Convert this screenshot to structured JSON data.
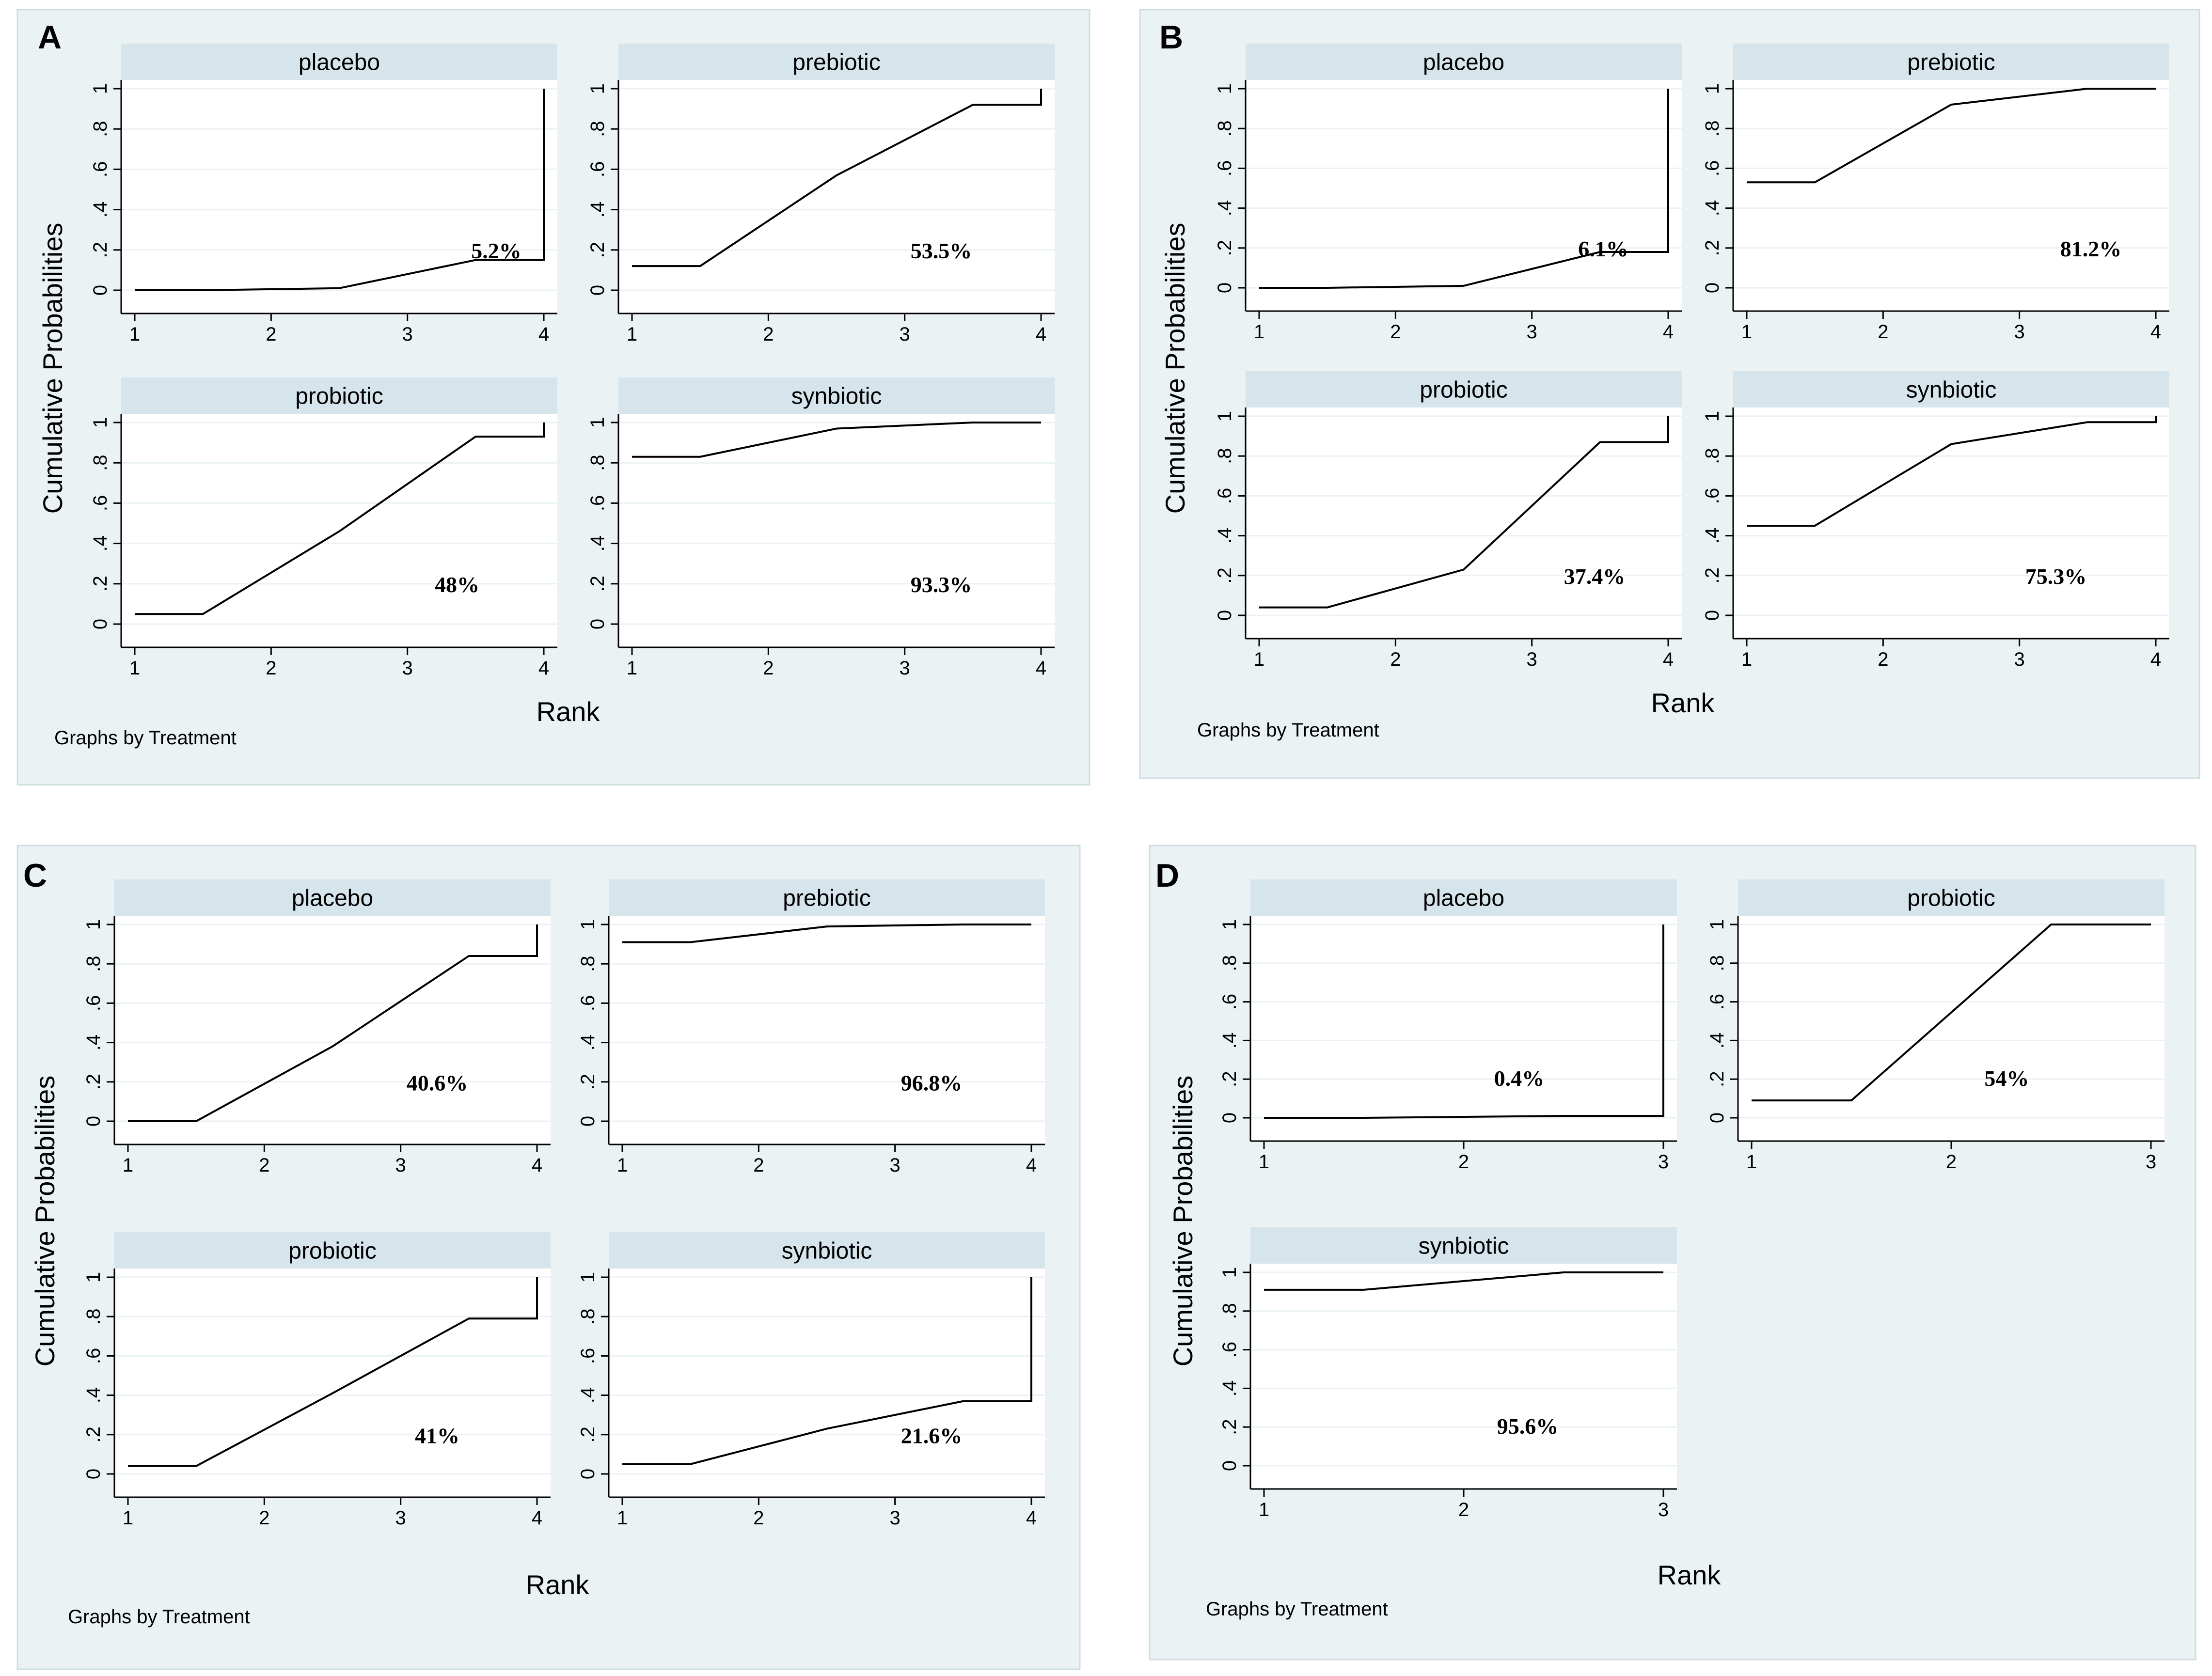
{
  "figure_type": "SUCRA cumulative ranking plots",
  "chart_data": [
    {
      "panel": "A",
      "type": "line",
      "xlabel": "Rank",
      "ylabel": "Cumulative Probabilities",
      "note": "Graphs by Treatment",
      "xlim": [
        1,
        4
      ],
      "ylim": [
        0,
        1
      ],
      "yticks": [
        "0",
        ".2",
        ".4",
        ".6",
        ".8",
        "1"
      ],
      "xticks": [
        "1",
        "2",
        "3",
        "4"
      ],
      "facets": [
        {
          "name": "placebo",
          "sucra": "5.2%",
          "x": [
            1,
            1.5,
            2.5,
            3.5,
            4,
            4
          ],
          "y": [
            0,
            0,
            0.01,
            0.15,
            0.15,
            1.0
          ]
        },
        {
          "name": "prebiotic",
          "sucra": "53.5%",
          "x": [
            1,
            1.5,
            2.5,
            3.5,
            4,
            4
          ],
          "y": [
            0.12,
            0.12,
            0.57,
            0.92,
            0.92,
            1.0
          ]
        },
        {
          "name": "probiotic",
          "sucra": "48%",
          "x": [
            1,
            1.5,
            2.5,
            3.5,
            4,
            4
          ],
          "y": [
            0.05,
            0.05,
            0.46,
            0.93,
            0.93,
            1.0
          ]
        },
        {
          "name": "synbiotic",
          "sucra": "93.3%",
          "x": [
            1,
            1.5,
            2.5,
            3.5,
            4
          ],
          "y": [
            0.83,
            0.83,
            0.97,
            1.0,
            1.0
          ]
        }
      ]
    },
    {
      "panel": "B",
      "type": "line",
      "xlabel": "Rank",
      "ylabel": "Cumulative Probabilities",
      "note": "Graphs by Treatment",
      "xlim": [
        1,
        4
      ],
      "ylim": [
        0,
        1
      ],
      "yticks": [
        "0",
        ".2",
        ".4",
        ".6",
        ".8",
        "1"
      ],
      "xticks": [
        "1",
        "2",
        "3",
        "4"
      ],
      "facets": [
        {
          "name": "placebo",
          "sucra": "6.1%",
          "x": [
            1,
            1.5,
            2.5,
            3.5,
            4,
            4
          ],
          "y": [
            0,
            0,
            0.01,
            0.18,
            0.18,
            1.0
          ]
        },
        {
          "name": "prebiotic",
          "sucra": "81.2%",
          "x": [
            1,
            1.5,
            2.5,
            3.5,
            4
          ],
          "y": [
            0.53,
            0.53,
            0.92,
            1.0,
            1.0
          ]
        },
        {
          "name": "probiotic",
          "sucra": "37.4%",
          "x": [
            1,
            1.5,
            2.5,
            3.5,
            4,
            4
          ],
          "y": [
            0.04,
            0.04,
            0.23,
            0.87,
            0.87,
            1.0
          ]
        },
        {
          "name": "synbiotic",
          "sucra": "75.3%",
          "x": [
            1,
            1.5,
            2.5,
            3.5,
            4,
            4
          ],
          "y": [
            0.45,
            0.45,
            0.86,
            0.97,
            0.97,
            1.0
          ]
        }
      ]
    },
    {
      "panel": "C",
      "type": "line",
      "xlabel": "Rank",
      "ylabel": "Cumulative Probabilities",
      "note": "Graphs by Treatment",
      "xlim": [
        1,
        4
      ],
      "ylim": [
        0,
        1
      ],
      "yticks": [
        "0",
        ".2",
        ".4",
        ".6",
        ".8",
        "1"
      ],
      "xticks": [
        "1",
        "2",
        "3",
        "4"
      ],
      "facets": [
        {
          "name": "placebo",
          "sucra": "40.6%",
          "x": [
            1,
            1.5,
            2.5,
            3.5,
            4,
            4
          ],
          "y": [
            0,
            0,
            0.38,
            0.84,
            0.84,
            1.0
          ]
        },
        {
          "name": "prebiotic",
          "sucra": "96.8%",
          "x": [
            1,
            1.5,
            2.5,
            3.5,
            4
          ],
          "y": [
            0.91,
            0.91,
            0.99,
            1.0,
            1.0
          ]
        },
        {
          "name": "probiotic",
          "sucra": "41%",
          "x": [
            1,
            1.5,
            2.5,
            3.5,
            4,
            4
          ],
          "y": [
            0.04,
            0.04,
            0.41,
            0.79,
            0.79,
            1.0
          ]
        },
        {
          "name": "synbiotic",
          "sucra": "21.6%",
          "x": [
            1,
            1.5,
            2.5,
            3.5,
            4,
            4
          ],
          "y": [
            0.05,
            0.05,
            0.23,
            0.37,
            0.37,
            1.0
          ]
        }
      ]
    },
    {
      "panel": "D",
      "type": "line",
      "xlabel": "Rank",
      "ylabel": "Cumulative Probabilities",
      "note": "Graphs by Treatment",
      "xlim": [
        1,
        3
      ],
      "ylim": [
        0,
        1
      ],
      "yticks": [
        "0",
        ".2",
        ".4",
        ".6",
        ".8",
        "1"
      ],
      "xticks": [
        "1",
        "2",
        "3"
      ],
      "facets": [
        {
          "name": "placebo",
          "sucra": "0.4%",
          "x": [
            1,
            1.5,
            2.5,
            3,
            3
          ],
          "y": [
            0,
            0,
            0.01,
            0.01,
            1.0
          ]
        },
        {
          "name": "probiotic",
          "sucra": "54%",
          "x": [
            1,
            1.5,
            2.5,
            3
          ],
          "y": [
            0.09,
            0.09,
            1.0,
            1.0
          ]
        },
        {
          "name": "synbiotic",
          "sucra": "95.6%",
          "x": [
            1,
            1.5,
            2.5,
            3
          ],
          "y": [
            0.91,
            0.91,
            1.0,
            1.0
          ]
        }
      ]
    }
  ]
}
